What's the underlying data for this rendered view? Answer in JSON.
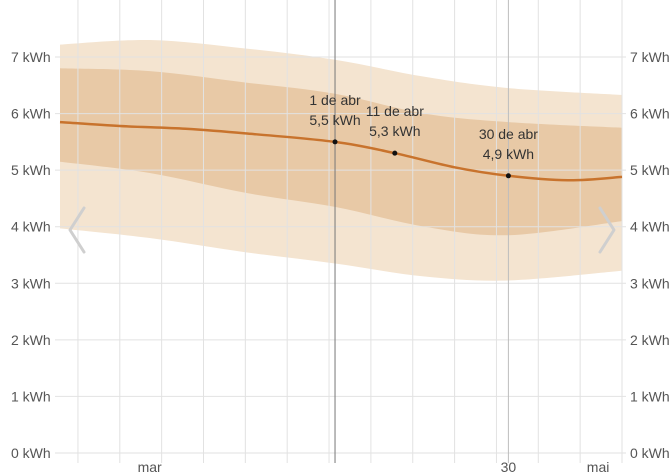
{
  "chart_data": {
    "type": "area",
    "title": "",
    "xlabel": "",
    "ylabel": "",
    "y_unit": "kWh",
    "ylim": [
      0,
      7
    ],
    "y_ticks": [
      {
        "value": 0,
        "label": "0 kWh"
      },
      {
        "value": 1,
        "label": "1 kWh"
      },
      {
        "value": 2,
        "label": "2 kWh"
      },
      {
        "value": 3,
        "label": "3 kWh"
      },
      {
        "value": 4,
        "label": "4 kWh"
      },
      {
        "value": 5,
        "label": "5 kWh"
      },
      {
        "value": 6,
        "label": "6 kWh"
      },
      {
        "value": 7,
        "label": "7 kWh"
      }
    ],
    "x_range": [
      "2024-02-15",
      "2024-05-19"
    ],
    "x_ticks": [
      {
        "date": "2024-03-01",
        "label": "mar"
      },
      {
        "date": "2024-04-30",
        "label": "30"
      },
      {
        "date": "2024-05-15",
        "label": "mai"
      }
    ],
    "x_gridlines": [
      "2024-02-18",
      "2024-02-25",
      "2024-03-03",
      "2024-03-10",
      "2024-03-17",
      "2024-03-24",
      "2024-03-31",
      "2024-04-07",
      "2024-04-14",
      "2024-04-21",
      "2024-04-28",
      "2024-05-05",
      "2024-05-12",
      "2024-05-19"
    ],
    "colors": {
      "median_line": "#c8732d",
      "inner_band": "#e8c9a6",
      "outer_band": "#f4e4d0",
      "grid": "#e2e2e2",
      "nav_arrow": "#cfcfcf"
    },
    "series": [
      {
        "role": "median",
        "points": [
          {
            "x": "2024-02-15",
            "y": 5.85
          },
          {
            "x": "2024-02-25",
            "y": 5.78
          },
          {
            "x": "2024-03-07",
            "y": 5.73
          },
          {
            "x": "2024-03-17",
            "y": 5.65
          },
          {
            "x": "2024-04-01",
            "y": 5.5
          },
          {
            "x": "2024-04-11",
            "y": 5.3
          },
          {
            "x": "2024-04-21",
            "y": 5.05
          },
          {
            "x": "2024-04-30",
            "y": 4.9
          },
          {
            "x": "2024-05-10",
            "y": 4.82
          },
          {
            "x": "2024-05-19",
            "y": 4.88
          }
        ]
      },
      {
        "role": "inner_band",
        "points": [
          {
            "x": "2024-02-15",
            "low": 5.15,
            "high": 6.8
          },
          {
            "x": "2024-03-01",
            "low": 4.95,
            "high": 6.75
          },
          {
            "x": "2024-03-17",
            "low": 4.6,
            "high": 6.55
          },
          {
            "x": "2024-04-01",
            "low": 4.35,
            "high": 6.35
          },
          {
            "x": "2024-04-16",
            "low": 4.0,
            "high": 6.0
          },
          {
            "x": "2024-04-30",
            "low": 3.85,
            "high": 5.85
          },
          {
            "x": "2024-05-19",
            "low": 4.1,
            "high": 5.75
          }
        ]
      },
      {
        "role": "outer_band",
        "points": [
          {
            "x": "2024-02-15",
            "low": 3.97,
            "high": 7.22
          },
          {
            "x": "2024-03-01",
            "low": 3.8,
            "high": 7.3
          },
          {
            "x": "2024-03-17",
            "low": 3.55,
            "high": 7.15
          },
          {
            "x": "2024-04-01",
            "low": 3.35,
            "high": 6.95
          },
          {
            "x": "2024-04-16",
            "low": 3.12,
            "high": 6.65
          },
          {
            "x": "2024-04-30",
            "low": 3.05,
            "high": 6.45
          },
          {
            "x": "2024-05-19",
            "low": 3.22,
            "high": 6.33
          }
        ]
      }
    ],
    "annotations": [
      {
        "date": "2024-04-01",
        "value": 5.5,
        "date_label": "1 de abr",
        "value_label": "5,5 kWh"
      },
      {
        "date": "2024-04-11",
        "value": 5.3,
        "date_label": "11 de abr",
        "value_label": "5,3 kWh"
      },
      {
        "date": "2024-04-30",
        "value": 4.9,
        "date_label": "30 de abr",
        "value_label": "4,9 kWh"
      }
    ],
    "grid": true
  },
  "navigation": {
    "prev_icon": "chevron-left-icon",
    "next_icon": "chevron-right-icon"
  }
}
